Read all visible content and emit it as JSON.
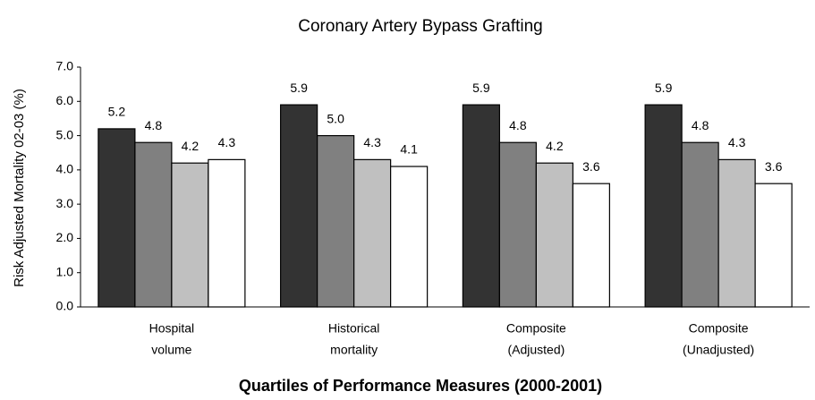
{
  "chart_data": {
    "type": "bar",
    "title": "Coronary Artery Bypass Grafting",
    "x_label": "Quartiles of Performance Measures (2000-2001)",
    "y_label": "Risk Adjusted Mortality 02-03 (%)",
    "categories": [
      [
        "Hospital",
        "volume"
      ],
      [
        "Historical",
        "mortality"
      ],
      [
        "Composite",
        "(Adjusted)"
      ],
      [
        "Composite",
        "(Unadjusted)"
      ]
    ],
    "series": [
      {
        "color": "#333333",
        "values": [
          5.2,
          5.9,
          5.9,
          5.9
        ],
        "value_labels": [
          "5.2",
          "5.9",
          "5.9",
          "5.9"
        ]
      },
      {
        "color": "#808080",
        "values": [
          4.8,
          5.0,
          4.8,
          4.8
        ],
        "value_labels": [
          "4.8",
          "5.0",
          "4.8",
          "4.8"
        ]
      },
      {
        "color": "#c0c0c0",
        "values": [
          4.2,
          4.3,
          4.2,
          4.3
        ],
        "value_labels": [
          "4.2",
          "4.3",
          "4.2",
          "4.3"
        ]
      },
      {
        "color": "#ffffff",
        "values": [
          4.3,
          4.1,
          3.6,
          3.6
        ],
        "value_labels": [
          "4.3",
          "4.1",
          "3.6",
          "3.6"
        ]
      }
    ],
    "ylim": [
      0,
      7
    ],
    "yticks": [
      {
        "value": 0,
        "label": "0.0"
      },
      {
        "value": 1,
        "label": "1.0"
      },
      {
        "value": 2,
        "label": "2.0"
      },
      {
        "value": 3,
        "label": "3.0"
      },
      {
        "value": 4,
        "label": "4.0"
      },
      {
        "value": 5,
        "label": "5.0"
      },
      {
        "value": 6,
        "label": "6.0"
      },
      {
        "value": 7,
        "label": "7.0"
      }
    ],
    "grid": false
  }
}
